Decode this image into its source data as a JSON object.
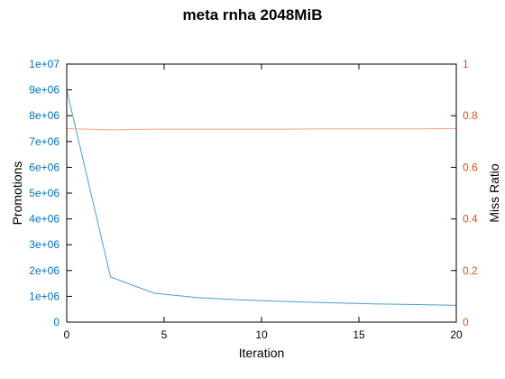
{
  "chart_data": {
    "type": "line",
    "title": "meta rnha 2048MiB",
    "xlabel": "Iteration",
    "ylabel_left": "Promotions",
    "ylabel_right": "Miss Ratio",
    "xlim": [
      0,
      20
    ],
    "ylim_left": [
      0,
      10000000
    ],
    "ylim_right": [
      0,
      1
    ],
    "x_ticks": [
      0,
      5,
      10,
      15,
      20
    ],
    "x_tick_labels": [
      "0",
      "5",
      "10",
      "15",
      "20"
    ],
    "y_left_ticks": [
      0,
      1000000,
      2000000,
      3000000,
      4000000,
      5000000,
      6000000,
      7000000,
      8000000,
      9000000,
      10000000
    ],
    "y_left_tick_labels": [
      "0",
      "1e+06",
      "2e+06",
      "3e+06",
      "4e+06",
      "5e+06",
      "6e+06",
      "7e+06",
      "8e+06",
      "9e+06",
      "1e+07"
    ],
    "y_right_ticks": [
      0,
      0.2,
      0.4,
      0.6,
      0.8,
      1
    ],
    "y_right_tick_labels": [
      "0",
      "0.2",
      "0.4",
      "0.6",
      "0.8",
      "1"
    ],
    "colors": {
      "left_axis": "#0072bd",
      "right_axis": "#d95319",
      "promotions_line": "#4a9fd4",
      "miss_ratio_line": "#f4a582",
      "frame": "#000000"
    },
    "series": [
      {
        "axis": "left",
        "x": [
          0,
          2.25,
          4.5,
          6.75,
          9,
          11.25,
          13.5,
          15.75,
          18,
          20
        ],
        "values": [
          9000000,
          1750000,
          1120000,
          950000,
          860000,
          800000,
          750000,
          710000,
          680000,
          650000
        ]
      },
      {
        "axis": "right",
        "x": [
          0,
          2.25,
          4.5,
          6.75,
          9,
          11.25,
          13.5,
          15.75,
          18,
          20
        ],
        "values": [
          0.75,
          0.745,
          0.748,
          0.748,
          0.748,
          0.748,
          0.749,
          0.749,
          0.749,
          0.75
        ]
      }
    ]
  }
}
